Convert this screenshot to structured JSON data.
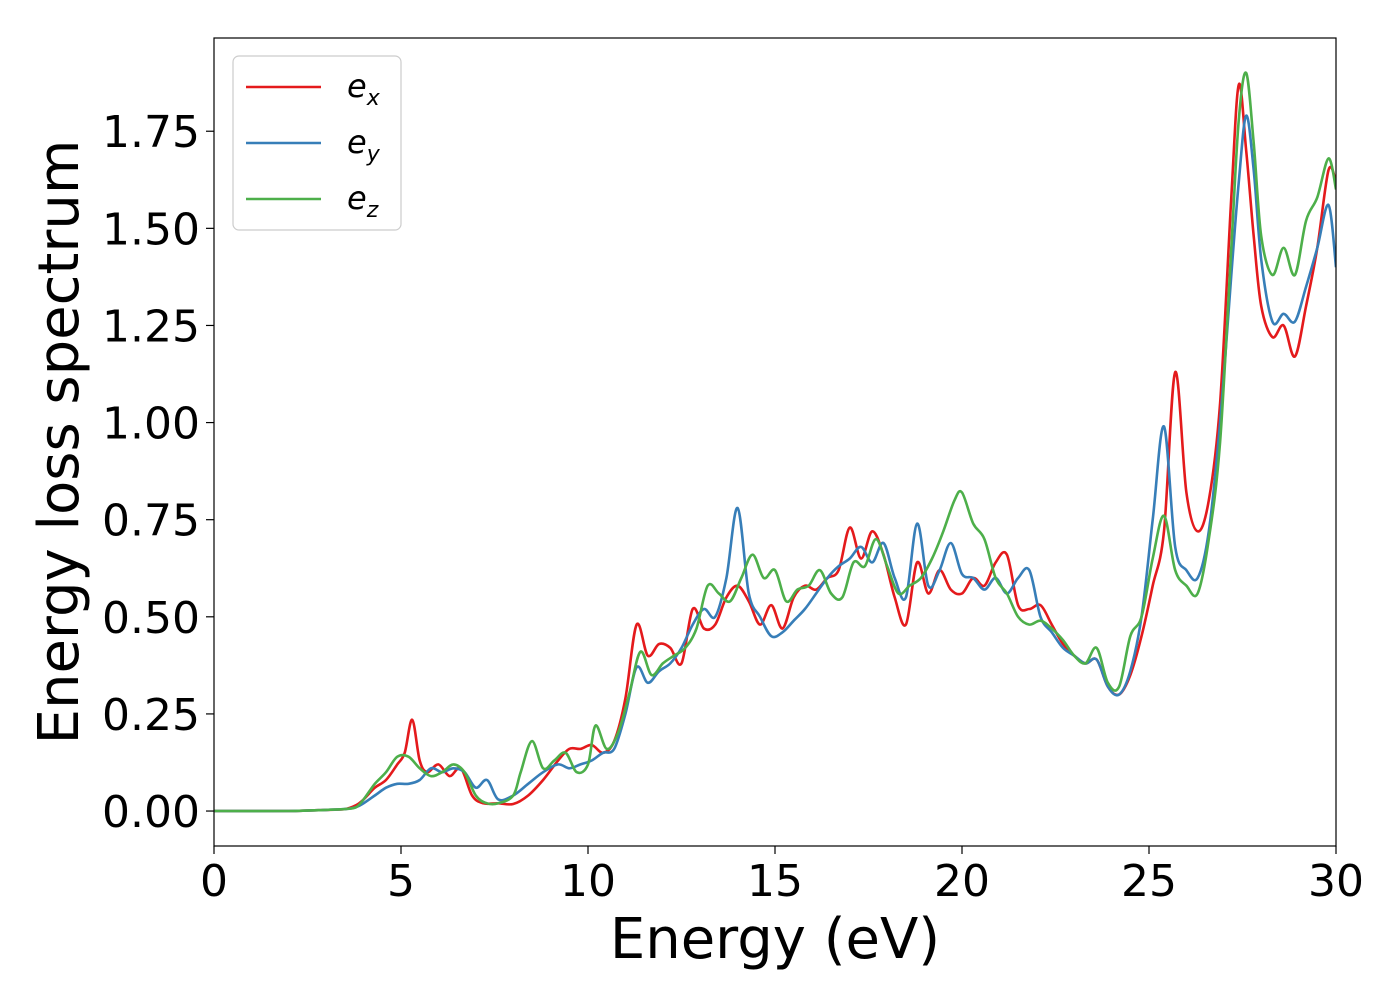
{
  "chart_data": {
    "type": "line",
    "xlabel": "Energy (eV)",
    "ylabel": "Energy loss spectrum",
    "xlim": [
      0,
      30
    ],
    "ylim": [
      -0.09,
      1.99
    ],
    "xticks": [
      0,
      5,
      10,
      15,
      20,
      25,
      30
    ],
    "xtick_labels": [
      "0",
      "5",
      "10",
      "15",
      "20",
      "25",
      "30"
    ],
    "yticks": [
      0,
      0.25,
      0.5,
      0.75,
      1.0,
      1.25,
      1.5,
      1.75
    ],
    "ytick_labels": [
      "0.00",
      "0.25",
      "0.50",
      "0.75",
      "1.00",
      "1.25",
      "1.50",
      "1.75"
    ],
    "grid": false,
    "legend_position": "top-left",
    "series": [
      {
        "name": "e",
        "subscript": "x",
        "color": "#e41a1c",
        "x": [
          0,
          2,
          3,
          3.5,
          3.8,
          4.0,
          4.3,
          4.6,
          4.9,
          5.1,
          5.3,
          5.5,
          5.7,
          6.0,
          6.3,
          6.6,
          6.9,
          7.2,
          7.6,
          8.0,
          8.4,
          8.8,
          9.2,
          9.5,
          9.8,
          10.1,
          10.4,
          10.7,
          11.0,
          11.3,
          11.6,
          11.9,
          12.2,
          12.5,
          12.8,
          13.1,
          13.4,
          13.7,
          14.0,
          14.3,
          14.6,
          14.9,
          15.2,
          15.5,
          15.8,
          16.1,
          16.4,
          16.7,
          17.0,
          17.3,
          17.6,
          17.9,
          18.2,
          18.5,
          18.8,
          19.1,
          19.4,
          19.7,
          20.0,
          20.3,
          20.6,
          20.9,
          21.2,
          21.5,
          21.8,
          22.1,
          22.4,
          22.7,
          23.0,
          23.3,
          23.6,
          23.9,
          24.2,
          24.5,
          24.8,
          25.1,
          25.4,
          25.7,
          26.0,
          26.3,
          26.6,
          26.9,
          27.2,
          27.4,
          27.6,
          27.8,
          28.0,
          28.3,
          28.6,
          28.9,
          29.2,
          29.5,
          29.8,
          30.0
        ],
        "y": [
          0,
          0.0,
          0.003,
          0.005,
          0.015,
          0.03,
          0.06,
          0.08,
          0.12,
          0.15,
          0.235,
          0.13,
          0.1,
          0.12,
          0.09,
          0.11,
          0.04,
          0.02,
          0.02,
          0.018,
          0.04,
          0.08,
          0.13,
          0.16,
          0.16,
          0.17,
          0.15,
          0.18,
          0.29,
          0.48,
          0.4,
          0.43,
          0.42,
          0.38,
          0.52,
          0.47,
          0.48,
          0.55,
          0.58,
          0.54,
          0.48,
          0.53,
          0.47,
          0.55,
          0.58,
          0.57,
          0.6,
          0.62,
          0.73,
          0.65,
          0.72,
          0.66,
          0.55,
          0.48,
          0.64,
          0.56,
          0.62,
          0.57,
          0.56,
          0.6,
          0.58,
          0.64,
          0.66,
          0.53,
          0.52,
          0.53,
          0.48,
          0.43,
          0.4,
          0.38,
          0.39,
          0.32,
          0.3,
          0.35,
          0.45,
          0.58,
          0.72,
          1.13,
          0.82,
          0.72,
          0.8,
          1.05,
          1.58,
          1.87,
          1.7,
          1.48,
          1.3,
          1.22,
          1.25,
          1.17,
          1.3,
          1.45,
          1.65,
          1.62
        ]
      },
      {
        "name": "e",
        "subscript": "y",
        "color": "#377eb8",
        "x": [
          0,
          2,
          3,
          3.5,
          3.8,
          4.0,
          4.3,
          4.6,
          4.9,
          5.2,
          5.5,
          5.8,
          6.1,
          6.4,
          6.7,
          7.0,
          7.3,
          7.6,
          8.0,
          8.4,
          8.8,
          9.2,
          9.5,
          9.8,
          10.1,
          10.4,
          10.7,
          11.0,
          11.3,
          11.6,
          11.9,
          12.2,
          12.5,
          12.8,
          13.1,
          13.4,
          13.7,
          14.0,
          14.3,
          14.6,
          14.9,
          15.2,
          15.5,
          15.8,
          16.1,
          16.4,
          16.7,
          17.0,
          17.3,
          17.6,
          17.9,
          18.2,
          18.5,
          18.8,
          19.1,
          19.4,
          19.7,
          20.0,
          20.3,
          20.6,
          20.9,
          21.2,
          21.5,
          21.8,
          22.1,
          22.4,
          22.7,
          23.0,
          23.3,
          23.6,
          23.9,
          24.2,
          24.5,
          24.8,
          25.1,
          25.4,
          25.7,
          26.0,
          26.3,
          26.6,
          26.9,
          27.2,
          27.4,
          27.6,
          27.8,
          28.0,
          28.3,
          28.6,
          28.9,
          29.2,
          29.5,
          29.8,
          30.0
        ],
        "y": [
          0,
          0.0,
          0.003,
          0.005,
          0.01,
          0.02,
          0.04,
          0.06,
          0.07,
          0.07,
          0.08,
          0.11,
          0.1,
          0.11,
          0.1,
          0.06,
          0.08,
          0.03,
          0.04,
          0.07,
          0.1,
          0.12,
          0.11,
          0.12,
          0.13,
          0.15,
          0.16,
          0.25,
          0.37,
          0.33,
          0.36,
          0.38,
          0.42,
          0.48,
          0.52,
          0.5,
          0.6,
          0.78,
          0.56,
          0.5,
          0.45,
          0.46,
          0.49,
          0.52,
          0.56,
          0.6,
          0.63,
          0.65,
          0.68,
          0.64,
          0.69,
          0.6,
          0.55,
          0.74,
          0.58,
          0.62,
          0.69,
          0.61,
          0.6,
          0.57,
          0.6,
          0.56,
          0.6,
          0.62,
          0.5,
          0.46,
          0.42,
          0.4,
          0.38,
          0.39,
          0.32,
          0.3,
          0.36,
          0.5,
          0.75,
          0.99,
          0.68,
          0.62,
          0.6,
          0.72,
          1.0,
          1.38,
          1.62,
          1.79,
          1.65,
          1.42,
          1.26,
          1.28,
          1.26,
          1.35,
          1.45,
          1.56,
          1.4
        ]
      },
      {
        "name": "e",
        "subscript": "z",
        "color": "#4daf4a",
        "x": [
          0,
          2,
          3,
          3.5,
          3.8,
          4.0,
          4.3,
          4.6,
          4.9,
          5.2,
          5.5,
          5.8,
          6.1,
          6.4,
          6.7,
          7.0,
          7.3,
          7.6,
          8.0,
          8.2,
          8.5,
          8.8,
          9.1,
          9.4,
          9.7,
          10.0,
          10.2,
          10.5,
          10.8,
          11.1,
          11.4,
          11.7,
          12.0,
          12.3,
          12.6,
          12.9,
          13.2,
          13.5,
          13.8,
          14.1,
          14.4,
          14.7,
          15.0,
          15.3,
          15.6,
          15.9,
          16.2,
          16.5,
          16.8,
          17.1,
          17.4,
          17.7,
          18.0,
          18.3,
          18.6,
          18.9,
          19.2,
          19.5,
          19.8,
          20.0,
          20.3,
          20.6,
          20.9,
          21.2,
          21.5,
          21.8,
          22.1,
          22.4,
          22.7,
          23.0,
          23.3,
          23.6,
          23.9,
          24.2,
          24.5,
          24.8,
          25.1,
          25.4,
          25.7,
          26.0,
          26.3,
          26.6,
          26.9,
          27.2,
          27.4,
          27.6,
          27.8,
          28.0,
          28.3,
          28.6,
          28.9,
          29.2,
          29.5,
          29.8,
          30.0
        ],
        "y": [
          0,
          0.0,
          0.003,
          0.005,
          0.01,
          0.03,
          0.07,
          0.1,
          0.14,
          0.14,
          0.11,
          0.09,
          0.1,
          0.12,
          0.1,
          0.04,
          0.02,
          0.02,
          0.04,
          0.1,
          0.18,
          0.11,
          0.13,
          0.15,
          0.1,
          0.12,
          0.22,
          0.16,
          0.2,
          0.3,
          0.41,
          0.35,
          0.38,
          0.4,
          0.42,
          0.47,
          0.58,
          0.56,
          0.54,
          0.6,
          0.66,
          0.6,
          0.62,
          0.54,
          0.57,
          0.58,
          0.62,
          0.56,
          0.55,
          0.64,
          0.63,
          0.7,
          0.63,
          0.56,
          0.58,
          0.6,
          0.65,
          0.72,
          0.8,
          0.82,
          0.74,
          0.7,
          0.6,
          0.56,
          0.5,
          0.48,
          0.49,
          0.47,
          0.44,
          0.4,
          0.38,
          0.42,
          0.33,
          0.32,
          0.45,
          0.5,
          0.65,
          0.76,
          0.62,
          0.58,
          0.56,
          0.7,
          0.95,
          1.45,
          1.78,
          1.9,
          1.72,
          1.48,
          1.38,
          1.45,
          1.38,
          1.52,
          1.58,
          1.68,
          1.6
        ]
      }
    ]
  }
}
